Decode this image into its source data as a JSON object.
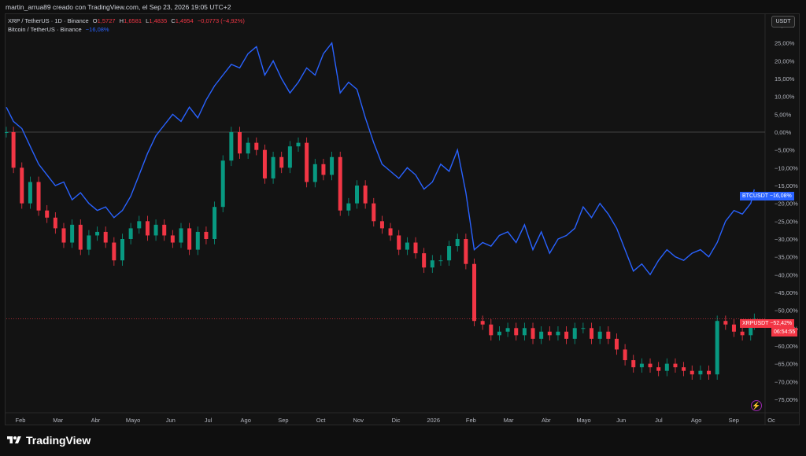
{
  "header": {
    "attribution": "martin_arrua89 creado con TradingView.com, el Sep 23, 2026 19:05 UTC+2"
  },
  "legend": {
    "primary_symbol": "XRP / TetherUS · 1D · Binance",
    "open_label": "O",
    "open_value": "1,5727",
    "high_label": "H",
    "high_value": "1,6581",
    "low_label": "L",
    "low_value": "1,4835",
    "close_label": "C",
    "close_value": "1,4954",
    "change": "−0,0773 (−4,92%)",
    "compare_symbol": "Bitcoin / TetherUS · Binance",
    "compare_change": "−16,08%"
  },
  "currency_badge": "USDT",
  "price_labels": {
    "btc_label": "BTCUSDT",
    "btc_value": "−16,08%",
    "xrp_label": "XRPUSDT",
    "xrp_value": "−52,42%",
    "xrp_countdown": "06:54:55"
  },
  "colors": {
    "btc_line": "#2962ff",
    "candle_up": "#089981",
    "candle_down": "#f23645",
    "zero_line": "#555555",
    "xrp_price_line": "#f23645"
  },
  "icons": [
    "tradingview-logo-icon",
    "lightning-icon"
  ],
  "footer": {
    "brand": "TradingView"
  },
  "chart_data": {
    "type": "line",
    "scale": "percent",
    "ylim": [
      -77,
      32
    ],
    "y_ticks": [
      "30,00%",
      "25,00%",
      "20,00%",
      "15,00%",
      "10,00%",
      "5,00%",
      "0,00%",
      "−5,00%",
      "−10,00%",
      "−15,00%",
      "−20,00%",
      "−25,00%",
      "−30,00%",
      "−35,00%",
      "−40,00%",
      "−45,00%",
      "−50,00%",
      "−55,00%",
      "−60,00%",
      "−65,00%",
      "−70,00%",
      "−75,00%"
    ],
    "x_ticks": [
      "Feb",
      "Mar",
      "Abr",
      "Mayo",
      "Jun",
      "Jul",
      "Ago",
      "Sep",
      "Oct",
      "Nov",
      "Dic",
      "2026",
      "Feb",
      "Mar",
      "Abr",
      "Mayo",
      "Jun",
      "Jul",
      "Ago",
      "Sep",
      "Oc"
    ],
    "xlim": [
      "2025-01-06",
      "2026-10-02"
    ],
    "grid": false,
    "series": [
      {
        "name": "Bitcoin / TetherUS · Binance",
        "kind": "line",
        "x": [
          "2025-01-06",
          "2025-01-12",
          "2025-01-19",
          "2025-01-26",
          "2025-02-02",
          "2025-02-09",
          "2025-02-16",
          "2025-02-23",
          "2025-03-02",
          "2025-03-09",
          "2025-03-16",
          "2025-03-23",
          "2025-03-30",
          "2025-04-06",
          "2025-04-13",
          "2025-04-20",
          "2025-04-27",
          "2025-05-04",
          "2025-05-11",
          "2025-05-18",
          "2025-05-25",
          "2025-06-01",
          "2025-06-08",
          "2025-06-15",
          "2025-06-22",
          "2025-06-29",
          "2025-07-06",
          "2025-07-13",
          "2025-07-20",
          "2025-07-27",
          "2025-08-03",
          "2025-08-10",
          "2025-08-17",
          "2025-08-24",
          "2025-08-31",
          "2025-09-07",
          "2025-09-14",
          "2025-09-21",
          "2025-09-28",
          "2025-10-05",
          "2025-10-12",
          "2025-10-19",
          "2025-10-26",
          "2025-11-02",
          "2025-11-09",
          "2025-11-16",
          "2025-11-23",
          "2025-11-30",
          "2025-12-07",
          "2025-12-14",
          "2025-12-21",
          "2025-12-28",
          "2026-01-04",
          "2026-01-11",
          "2026-01-18",
          "2026-01-25",
          "2026-02-01",
          "2026-02-08",
          "2026-02-15",
          "2026-02-22",
          "2026-03-01",
          "2026-03-08",
          "2026-03-15",
          "2026-03-22",
          "2026-03-29",
          "2026-04-05",
          "2026-04-12",
          "2026-04-19",
          "2026-04-26",
          "2026-05-03",
          "2026-05-10",
          "2026-05-17",
          "2026-05-24",
          "2026-05-31",
          "2026-06-07",
          "2026-06-14",
          "2026-06-21",
          "2026-06-28",
          "2026-07-05",
          "2026-07-12",
          "2026-07-19",
          "2026-07-26",
          "2026-08-02",
          "2026-08-09",
          "2026-08-16",
          "2026-08-23",
          "2026-08-30",
          "2026-09-06",
          "2026-09-13",
          "2026-09-20",
          "2026-09-23"
        ],
        "y": [
          7,
          3,
          1,
          -4,
          -9,
          -12,
          -15,
          -14,
          -19,
          -17,
          -20,
          -22,
          -21,
          -24,
          -22,
          -18,
          -12,
          -6,
          -1,
          2,
          5,
          3,
          7,
          4,
          9,
          13,
          16,
          19,
          18,
          22,
          24,
          16,
          20,
          15,
          11,
          14,
          18,
          16,
          22,
          25,
          11,
          14,
          12,
          4,
          -3,
          -9,
          -11,
          -13,
          -10,
          -12,
          -16,
          -14,
          -9,
          -11,
          -5,
          -17,
          -33,
          -31,
          -32,
          -29,
          -28,
          -31,
          -26,
          -33,
          -28,
          -34,
          -30,
          -29,
          -27,
          -21,
          -24,
          -20,
          -23,
          -27,
          -33,
          -39,
          -37,
          -40,
          -36,
          -33,
          -35,
          -36,
          -34,
          -33,
          -35,
          -31,
          -25,
          -22,
          -23,
          -20,
          -16.08
        ]
      },
      {
        "name": "XRP / TetherUS · 1D · Binance",
        "kind": "candlestick",
        "x": [
          "2025-01-06",
          "2025-01-12",
          "2025-01-19",
          "2025-01-26",
          "2025-02-02",
          "2025-02-09",
          "2025-02-16",
          "2025-02-23",
          "2025-03-02",
          "2025-03-09",
          "2025-03-16",
          "2025-03-23",
          "2025-03-30",
          "2025-04-06",
          "2025-04-13",
          "2025-04-20",
          "2025-04-27",
          "2025-05-04",
          "2025-05-11",
          "2025-05-18",
          "2025-05-25",
          "2025-06-01",
          "2025-06-08",
          "2025-06-15",
          "2025-06-22",
          "2025-06-29",
          "2025-07-06",
          "2025-07-13",
          "2025-07-20",
          "2025-07-27",
          "2025-08-03",
          "2025-08-10",
          "2025-08-17",
          "2025-08-24",
          "2025-08-31",
          "2025-09-07",
          "2025-09-14",
          "2025-09-21",
          "2025-09-28",
          "2025-10-05",
          "2025-10-12",
          "2025-10-19",
          "2025-10-26",
          "2025-11-02",
          "2025-11-09",
          "2025-11-16",
          "2025-11-23",
          "2025-11-30",
          "2025-12-07",
          "2025-12-14",
          "2025-12-21",
          "2025-12-28",
          "2026-01-04",
          "2026-01-11",
          "2026-01-18",
          "2026-01-25",
          "2026-02-01",
          "2026-02-08",
          "2026-02-15",
          "2026-02-22",
          "2026-03-01",
          "2026-03-08",
          "2026-03-15",
          "2026-03-22",
          "2026-03-29",
          "2026-04-05",
          "2026-04-12",
          "2026-04-19",
          "2026-04-26",
          "2026-05-03",
          "2026-05-10",
          "2026-05-17",
          "2026-05-24",
          "2026-05-31",
          "2026-06-07",
          "2026-06-14",
          "2026-06-21",
          "2026-06-28",
          "2026-07-05",
          "2026-07-12",
          "2026-07-19",
          "2026-07-26",
          "2026-08-02",
          "2026-08-09",
          "2026-08-16",
          "2026-08-23",
          "2026-08-30",
          "2026-09-06",
          "2026-09-13",
          "2026-09-20",
          "2026-09-23"
        ],
        "y": [
          0,
          -10,
          -20,
          -14,
          -22,
          -24,
          -27,
          -31,
          -26,
          -33,
          -29,
          -28,
          -31,
          -36,
          -30,
          -27,
          -25,
          -29,
          -26,
          -29,
          -31,
          -27,
          -33,
          -28,
          -30,
          -21,
          -8,
          0,
          -6,
          -3,
          -5,
          -13,
          -7,
          -10,
          -4,
          -3,
          -14,
          -9,
          -12,
          -7,
          -22,
          -20,
          -15,
          -20,
          -25,
          -27,
          -29,
          -33,
          -31,
          -34,
          -38,
          -36,
          -36,
          -32,
          -30,
          -37,
          -53,
          -54,
          -57,
          -56,
          -55,
          -57,
          -55,
          -58,
          -56,
          -57,
          -56,
          -58,
          -55,
          -55,
          -58,
          -56,
          -58,
          -61,
          -64,
          -66,
          -65,
          -66,
          -67,
          -65,
          -66,
          -67,
          -68,
          -67,
          -68,
          -53,
          -54,
          -56,
          -57,
          -54,
          -52.42
        ]
      }
    ]
  }
}
